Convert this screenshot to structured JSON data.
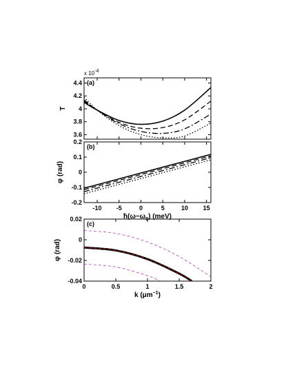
{
  "chart_data": [
    {
      "type": "line",
      "panel_label": "(a)",
      "ylabel": "T",
      "xlabel": "",
      "y_multiplier": "x 10",
      "y_multiplier_exp": "-4",
      "xlim": [
        -13,
        16
      ],
      "ylim": [
        3.53,
        4.48
      ],
      "xticks": [
        -10,
        -5,
        0,
        5,
        10,
        15
      ],
      "xtick_labels_visible": false,
      "yticks": [
        3.6,
        3.8,
        4.0,
        4.2,
        4.4
      ],
      "ytick_labels": [
        "3.6",
        "3.8",
        "4",
        "4.2",
        "4.4"
      ],
      "series": [
        {
          "style": "solid",
          "x": [
            -13,
            -10,
            -5,
            0,
            5,
            10,
            16
          ],
          "y": [
            4.1,
            3.98,
            3.82,
            3.76,
            3.81,
            3.98,
            4.33
          ]
        },
        {
          "style": "dashed",
          "x": [
            -13,
            -10,
            -5,
            0,
            5,
            10,
            16
          ],
          "y": [
            4.12,
            3.98,
            3.79,
            3.7,
            3.71,
            3.83,
            4.12
          ]
        },
        {
          "style": "dashdot",
          "x": [
            -13,
            -10,
            -5,
            0,
            5,
            10,
            16
          ],
          "y": [
            4.14,
            3.98,
            3.77,
            3.65,
            3.62,
            3.69,
            3.92
          ]
        },
        {
          "style": "dotted",
          "x": [
            -13,
            -10,
            -5,
            0,
            5,
            10,
            16
          ],
          "y": [
            4.18,
            3.98,
            3.74,
            3.6,
            3.55,
            3.58,
            3.78
          ]
        }
      ]
    },
    {
      "type": "line",
      "panel_label": "(b)",
      "ylabel": "φ (rad)",
      "xlabel": "ħ(ω−ω",
      "xlabel_sub": "0",
      "xlabel_tail": ") (meV)",
      "xlim": [
        -13,
        16
      ],
      "ylim": [
        -0.2,
        0.2
      ],
      "xticks": [
        -10,
        -5,
        0,
        5,
        10,
        15
      ],
      "xtick_labels": [
        "-10",
        "-5",
        "0",
        "5",
        "10",
        "15"
      ],
      "yticks": [
        -0.2,
        -0.1,
        0,
        0.1,
        0.2
      ],
      "ytick_labels": [
        "-0.2",
        "-0.1",
        "0",
        "0.1",
        "0.2"
      ],
      "series": [
        {
          "style": "solid",
          "x": [
            -13,
            16
          ],
          "y": [
            -0.105,
            0.118
          ]
        },
        {
          "style": "dashed",
          "x": [
            -13,
            16
          ],
          "y": [
            -0.115,
            0.108
          ]
        },
        {
          "style": "dashdot",
          "x": [
            -13,
            16
          ],
          "y": [
            -0.128,
            0.096
          ]
        },
        {
          "style": "dotted",
          "x": [
            -13,
            16
          ],
          "y": [
            -0.142,
            0.082
          ]
        }
      ]
    },
    {
      "type": "line",
      "panel_label": "(c)",
      "ylabel": "φ (rad)",
      "xlabel": "k (μm",
      "xlabel_sup": "−1",
      "xlabel_tail": ")",
      "xlim": [
        0,
        2
      ],
      "ylim": [
        -0.04,
        0.02
      ],
      "xticks": [
        0,
        0.5,
        1,
        1.5,
        2
      ],
      "xtick_labels": [
        "0",
        "0.5",
        "1",
        "1.5",
        "2"
      ],
      "yticks": [
        -0.04,
        -0.02,
        0,
        0.02
      ],
      "ytick_labels": [
        "-0.04",
        "-0.02",
        "0",
        "0.02"
      ],
      "series": [
        {
          "style": "thin-dashed",
          "color": "#b040b0",
          "x": [
            0,
            0.5,
            1,
            1.5,
            2
          ],
          "y": [
            0.009,
            0.0062,
            -0.0022,
            -0.0162,
            -0.0358
          ]
        },
        {
          "style": "thick-solid",
          "color": "#000000",
          "x": [
            0,
            0.5,
            1,
            1.5,
            1.7
          ],
          "y": [
            -0.0075,
            -0.0103,
            -0.0187,
            -0.0327,
            -0.04
          ]
        },
        {
          "style": "thin-dashed",
          "color": "#e02020",
          "x": [
            0,
            0.5,
            1,
            1.5,
            1.7
          ],
          "y": [
            -0.0075,
            -0.0103,
            -0.0187,
            -0.0327,
            -0.04
          ]
        },
        {
          "style": "thin-dashed",
          "color": "#b040b0",
          "x": [
            0,
            0.5,
            1,
            1.2
          ],
          "y": [
            -0.0235,
            -0.0263,
            -0.0347,
            -0.04
          ]
        }
      ]
    }
  ]
}
